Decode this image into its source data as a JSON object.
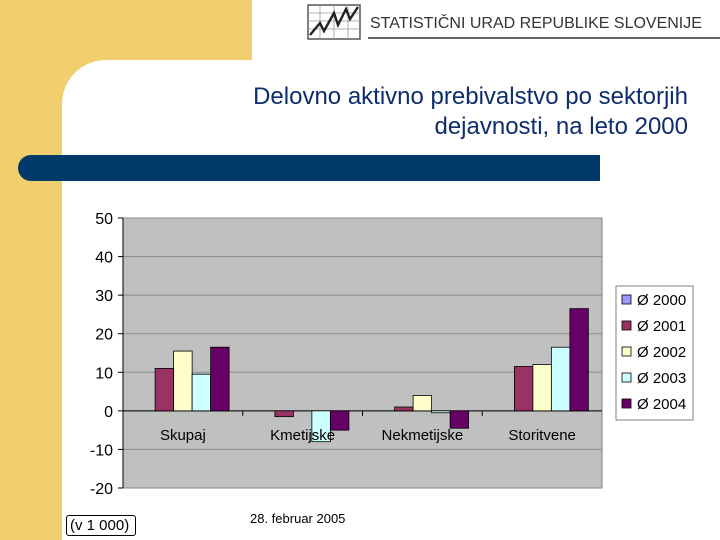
{
  "header": {
    "agency": "STATISTIČNI URAD REPUBLIKE SLOVENIJE"
  },
  "slide": {
    "title_line1": "Delovno aktivno prebivalstvo po sektorjih",
    "title_line2": "dejavnosti, na leto 2000",
    "date": "28. februar 2005",
    "unit_note": "(v 1 000)"
  },
  "colors": {
    "background_accent": "#f1cf6e",
    "title": "#0e2d6d",
    "band": "#003a6b",
    "plot_area": "#c0c0c0"
  },
  "chart_data": {
    "type": "bar",
    "categories": [
      "Skupaj",
      "Kmetijske",
      "Nekmetijske",
      "Storitvene"
    ],
    "series": [
      {
        "name": "Ø 2000",
        "color": "#9999ff",
        "values": [
          0,
          0,
          0,
          0
        ]
      },
      {
        "name": "Ø 2001",
        "color": "#993366",
        "values": [
          11,
          -1.5,
          1,
          11.5
        ]
      },
      {
        "name": "Ø 2002",
        "color": "#ffffcc",
        "values": [
          15.5,
          0,
          4,
          12
        ]
      },
      {
        "name": "Ø 2003",
        "color": "#ccffff",
        "values": [
          9.5,
          -8,
          -0.5,
          16.5
        ]
      },
      {
        "name": "Ø 2004",
        "color": "#660066",
        "values": [
          16.5,
          -5,
          -4.5,
          26.5
        ]
      }
    ],
    "ylim": [
      -20,
      50
    ],
    "yticks": [
      50,
      40,
      30,
      20,
      10,
      0,
      -10,
      -20
    ],
    "grid": true,
    "legend_position": "right"
  }
}
